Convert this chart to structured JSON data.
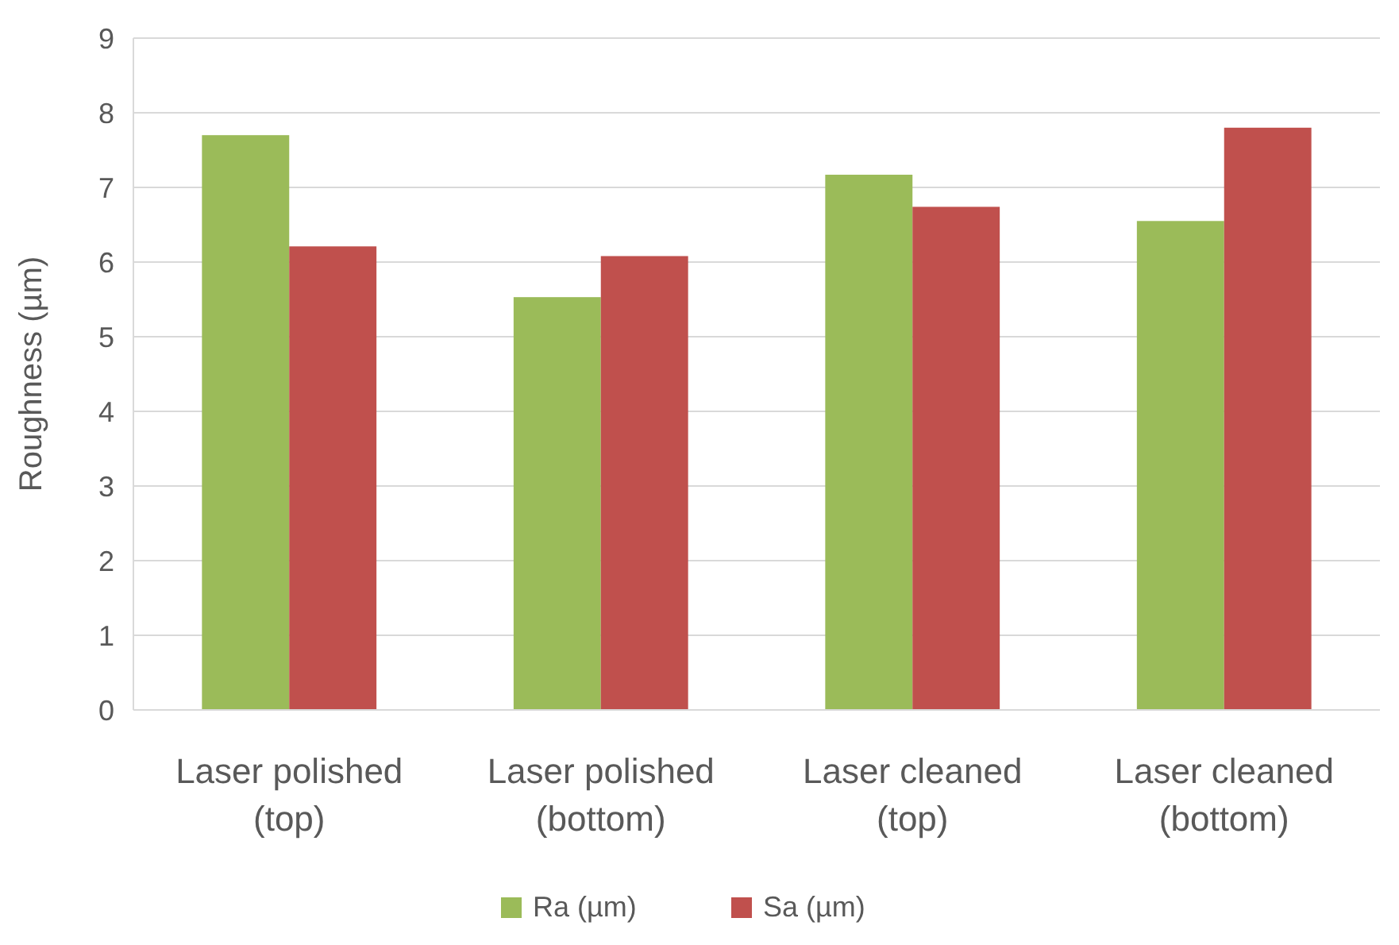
{
  "chart_data": {
    "type": "bar",
    "ylabel": "Roughness (µm)",
    "categories": [
      "Laser polished\n(top)",
      "Laser polished\n(bottom)",
      "Laser cleaned\n(top)",
      "Laser cleaned\n(bottom)"
    ],
    "series": [
      {
        "name": "Ra (µm)",
        "color": "#9bbb59",
        "values": [
          7.7,
          5.53,
          7.17,
          6.55
        ]
      },
      {
        "name": "Sa (µm)",
        "color": "#c0504d",
        "values": [
          6.21,
          6.08,
          6.74,
          7.8
        ]
      }
    ],
    "ylim": [
      0,
      9
    ],
    "yticks": [
      0,
      1,
      2,
      3,
      4,
      5,
      6,
      7,
      8,
      9
    ],
    "grid": "y",
    "legend": "bottom"
  }
}
